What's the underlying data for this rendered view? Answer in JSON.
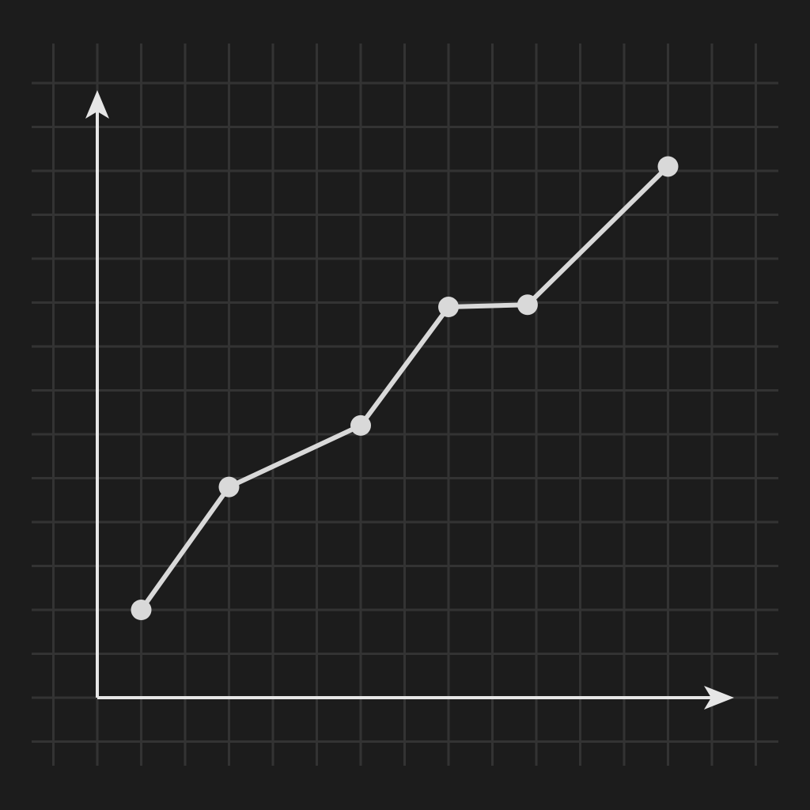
{
  "colors": {
    "background": "#1c1c1c",
    "grid": "#333333",
    "axis": "#e6e6e6",
    "series": "#d9d9d9"
  },
  "chart_data": {
    "type": "line",
    "title": "",
    "xlabel": "",
    "ylabel": "",
    "grid": true,
    "legend": "none",
    "x": [
      1,
      3,
      6,
      8,
      9.8,
      13
    ],
    "series": [
      {
        "values": [
          2,
          4.8,
          6.2,
          8.9,
          8.95,
          12.1
        ]
      }
    ],
    "xlim": [
      0,
      14
    ],
    "ylim": [
      0,
      14
    ],
    "arrow_axes": true
  }
}
